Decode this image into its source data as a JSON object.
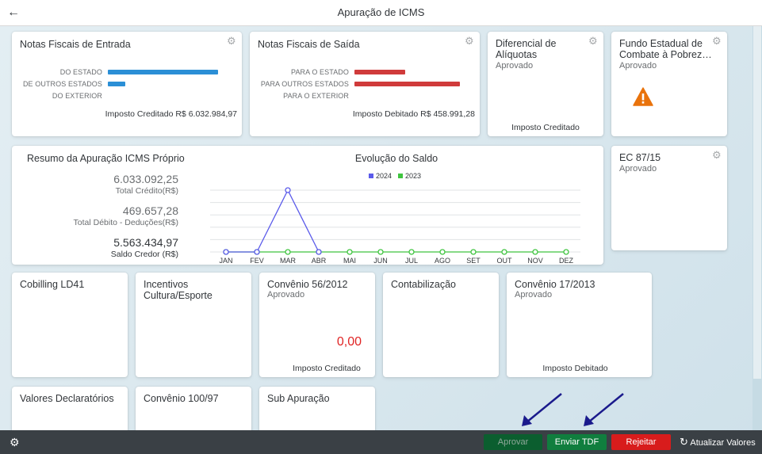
{
  "header": {
    "title": "Apuração de ICMS",
    "back_icon": "arrow-left-icon"
  },
  "tiles": {
    "entrada": {
      "title": "Notas Fiscais de Entrada",
      "bars": [
        {
          "label": "DO ESTADO",
          "value": 1.0,
          "color": "#2b8fd6"
        },
        {
          "label": "DE OUTROS ESTADOS",
          "value": 0.16,
          "color": "#2b8fd6"
        },
        {
          "label": "DO EXTERIOR",
          "value": 0,
          "color": "#2b8fd6"
        }
      ],
      "footer": "Imposto Creditado R$ 6.032.984,97"
    },
    "saida": {
      "title": "Notas Fiscais de Saída",
      "bars": [
        {
          "label": "PARA O ESTADO",
          "value": 0.48,
          "color": "#d03b3b"
        },
        {
          "label": "PARA OUTROS ESTADOS",
          "value": 1.0,
          "color": "#d03b3b"
        },
        {
          "label": "PARA O EXTERIOR",
          "value": 0,
          "color": "#d03b3b"
        }
      ],
      "footer": "Imposto Debitado R$ 458.991,28"
    },
    "diferencial": {
      "title_line1": "Diferencial de",
      "title_line2": "Alíquotas",
      "status": "Aprovado",
      "footer": "Imposto Creditado"
    },
    "fundo": {
      "title_line1": "Fundo Estadual de",
      "title_line2": "Combate à Pobrez…",
      "status": "Aprovado",
      "icon": "warning-icon",
      "warning_color": "#e9730c"
    },
    "ec87": {
      "title": "EC 87/15",
      "status": "Aprovado"
    },
    "cobilling": {
      "title": "Cobilling LD41"
    },
    "incentivos": {
      "title_line1": "Incentivos",
      "title_line2": "Cultura/Esporte"
    },
    "convenio56": {
      "title": "Convênio 56/2012",
      "status": "Aprovado",
      "value": "0,00",
      "value_color": "#e02424",
      "footer": "Imposto Creditado"
    },
    "contabilizacao": {
      "title": "Contabilização"
    },
    "convenio17": {
      "title": "Convênio 17/2013",
      "status": "Aprovado",
      "footer": "Imposto Debitado"
    },
    "declaratorios": {
      "title": "Valores Declaratórios"
    },
    "convenio100": {
      "title": "Convênio 100/97"
    },
    "subapuracao": {
      "title": "Sub Apuração"
    }
  },
  "resumo": {
    "title": "Resumo da Apuração ICMS Próprio",
    "items": [
      {
        "value": "6.033.092,25",
        "label": "Total Crédito(R$)"
      },
      {
        "value": "469.657,28",
        "label": "Total Débito - Deduções(R$)"
      },
      {
        "value": "5.563.434,97",
        "label": "Saldo Credor (R$)"
      }
    ]
  },
  "chart_data": {
    "type": "line",
    "title": "Evolução do Saldo",
    "categories": [
      "JAN",
      "FEV",
      "MAR",
      "ABR",
      "MAI",
      "JUN",
      "JUL",
      "AGO",
      "SET",
      "OUT",
      "NOV",
      "DEZ"
    ],
    "series": [
      {
        "name": "2024",
        "color": "#5b5bea",
        "values": [
          0,
          0,
          1,
          0,
          null,
          null,
          null,
          null,
          null,
          null,
          null,
          null
        ]
      },
      {
        "name": "2023",
        "color": "#3fc43f",
        "values": [
          0,
          0,
          0,
          0,
          0,
          0,
          0,
          0,
          0,
          0,
          0,
          0
        ]
      }
    ],
    "ylim": [
      0,
      1
    ],
    "grid": true,
    "legend": "top-center"
  },
  "footer": {
    "settings_icon": "gear-icon",
    "aprovar_label": "Aprovar",
    "enviar_label": "Enviar TDF",
    "rejeitar_label": "Rejeitar",
    "atualizar_label": "Atualizar Valores",
    "refresh_icon": "refresh-icon"
  },
  "colors": {
    "approve": "#0b5e2f",
    "send": "#107e3e",
    "reject": "#d81c1c",
    "arrow": "#1a1a8c"
  }
}
